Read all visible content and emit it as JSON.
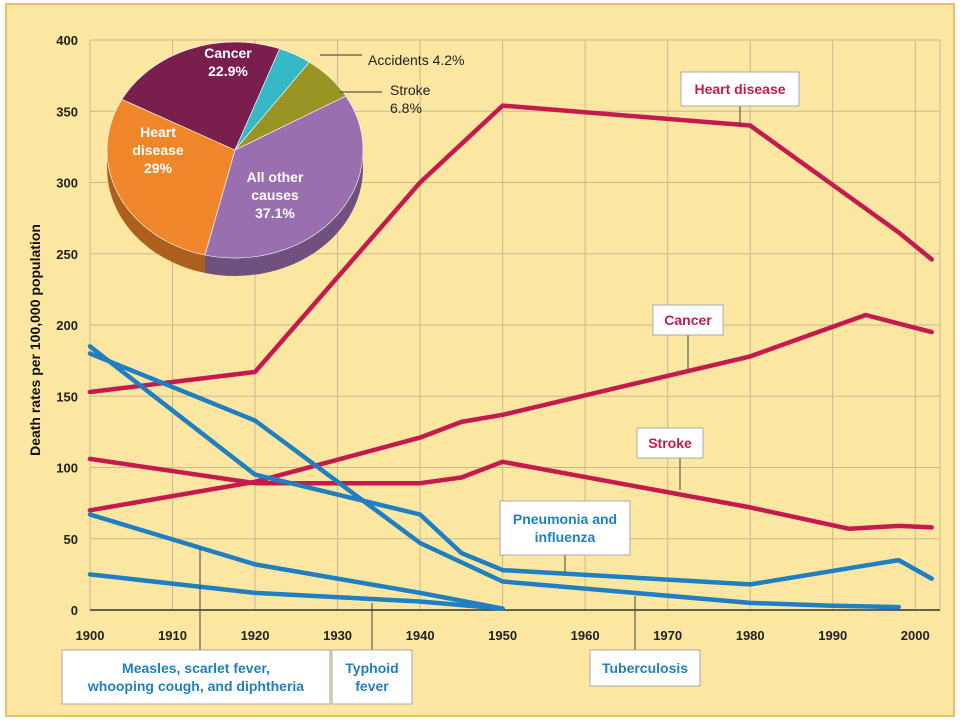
{
  "colors": {
    "background": "#fbe6a2",
    "frame": "#e6c06a",
    "grid": "#c9b98d",
    "red_line": "#c41a4e",
    "blue_line": "#1f7fc0",
    "pie_heart": "#f0862a",
    "pie_cancer": "#7a1f4d",
    "pie_accidents": "#35b9c6",
    "pie_stroke": "#9a9424",
    "pie_other": "#9a6fb0"
  },
  "chart_data": [
    {
      "type": "line",
      "ylabel": "Death rates per 100,000 population",
      "xlim": [
        1900,
        2003
      ],
      "ylim": [
        0,
        400
      ],
      "xticks": [
        "1900",
        "1910",
        "1920",
        "1930",
        "1940",
        "1950",
        "1960",
        "1970",
        "1980",
        "1990",
        "2000"
      ],
      "yticks": [
        "0",
        "50",
        "100",
        "150",
        "200",
        "250",
        "300",
        "350",
        "400"
      ],
      "grid": true,
      "series": [
        {
          "name": "Heart disease",
          "color": "red",
          "x": [
            1900,
            1920,
            1940,
            1950,
            1980,
            1998,
            2002
          ],
          "y": [
            153,
            167,
            300,
            354,
            340,
            265,
            246
          ]
        },
        {
          "name": "Cancer",
          "color": "red",
          "x": [
            1900,
            1920,
            1940,
            1945,
            1950,
            1980,
            1994,
            2002
          ],
          "y": [
            70,
            90,
            121,
            132,
            137,
            178,
            207,
            195
          ]
        },
        {
          "name": "Stroke",
          "color": "red",
          "x": [
            1900,
            1920,
            1940,
            1945,
            1950,
            1980,
            1992,
            1998,
            2002
          ],
          "y": [
            106,
            89,
            89,
            93,
            104,
            72,
            57,
            59,
            58
          ]
        },
        {
          "name": "Pneumonia and influenza",
          "color": "blue",
          "x": [
            1900,
            1920,
            1940,
            1945,
            1950,
            1980,
            1998,
            2002
          ],
          "y": [
            185,
            95,
            67,
            40,
            28,
            18,
            35,
            22
          ]
        },
        {
          "name": "Tuberculosis",
          "color": "blue",
          "x": [
            1900,
            1920,
            1940,
            1950,
            1980,
            1990,
            1998
          ],
          "y": [
            180,
            133,
            47,
            20,
            5,
            3,
            2
          ]
        },
        {
          "name": "Measles, scarlet fever, whooping cough, and diphtheria",
          "color": "blue",
          "x": [
            1900,
            1920,
            1940,
            1950
          ],
          "y": [
            67,
            32,
            12,
            1
          ]
        },
        {
          "name": "Typhoid fever",
          "color": "blue",
          "x": [
            1900,
            1920,
            1940,
            1950
          ],
          "y": [
            25,
            12,
            6,
            1
          ]
        }
      ],
      "annotations": [
        {
          "text_lines": [
            "Heart disease"
          ],
          "color": "red"
        },
        {
          "text_lines": [
            "Cancer"
          ],
          "color": "red"
        },
        {
          "text_lines": [
            "Stroke"
          ],
          "color": "red"
        },
        {
          "text_lines": [
            "Pneumonia and",
            "influenza"
          ],
          "color": "blue"
        },
        {
          "text_lines": [
            "Tuberculosis"
          ],
          "color": "blue"
        },
        {
          "text_lines": [
            "Measles, scarlet fever,",
            "whooping cough, and diphtheria"
          ],
          "color": "blue"
        },
        {
          "text_lines": [
            "Typhoid",
            "fever"
          ],
          "color": "blue"
        }
      ]
    },
    {
      "type": "pie",
      "slices": [
        {
          "label_lines": [
            "All other",
            "causes",
            "37.1%"
          ],
          "value": 37.1,
          "color_key": "pie_other"
        },
        {
          "label_lines": [
            "Heart",
            "disease",
            "29%"
          ],
          "value": 29,
          "color_key": "pie_heart"
        },
        {
          "label_lines": [
            "Cancer",
            "22.9%"
          ],
          "value": 22.9,
          "color_key": "pie_cancer"
        },
        {
          "label_lines": [
            "Accidents 4.2%"
          ],
          "value": 4.2,
          "color_key": "pie_accidents"
        },
        {
          "label_lines": [
            "Stroke",
            "6.8%"
          ],
          "value": 6.8,
          "color_key": "pie_stroke"
        }
      ]
    }
  ]
}
